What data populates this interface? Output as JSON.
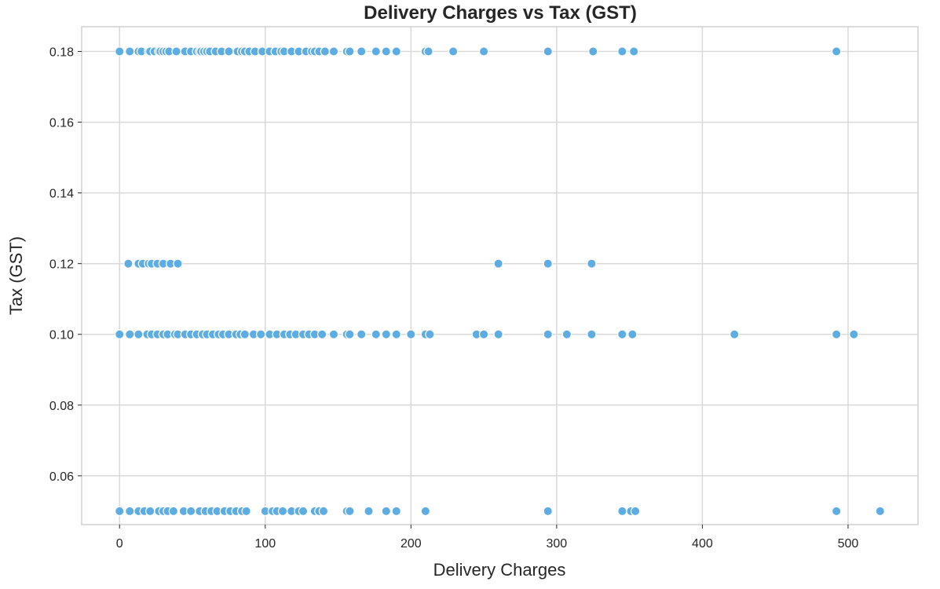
{
  "chart_data": {
    "type": "scatter",
    "title": "Delivery Charges vs Tax (GST)",
    "xlabel": "Delivery Charges",
    "ylabel": "Tax (GST)",
    "xlim": [
      -26,
      548
    ],
    "ylim": [
      0.0462,
      0.187
    ],
    "xticks": [
      0,
      100,
      200,
      300,
      400,
      500
    ],
    "xtick_labels": [
      "0",
      "100",
      "200",
      "300",
      "400",
      "500"
    ],
    "yticks": [
      0.06,
      0.08,
      0.1,
      0.12,
      0.14,
      0.16,
      0.18
    ],
    "ytick_labels": [
      "0.06",
      "0.08",
      "0.10",
      "0.12",
      "0.14",
      "0.16",
      "0.18"
    ],
    "grid": true,
    "point_color": "#5dade2",
    "series": [
      {
        "points": [
          [
            0,
            0.18
          ],
          [
            7,
            0.18
          ],
          [
            13,
            0.18
          ],
          [
            15,
            0.18
          ],
          [
            20,
            0.18
          ],
          [
            21,
            0.18
          ],
          [
            24,
            0.18
          ],
          [
            27,
            0.18
          ],
          [
            28,
            0.18
          ],
          [
            30,
            0.18
          ],
          [
            32,
            0.18
          ],
          [
            34,
            0.18
          ],
          [
            39,
            0.18
          ],
          [
            45,
            0.18
          ],
          [
            49,
            0.18
          ],
          [
            53,
            0.18
          ],
          [
            55,
            0.18
          ],
          [
            56,
            0.18
          ],
          [
            58,
            0.18
          ],
          [
            60,
            0.18
          ],
          [
            62,
            0.18
          ],
          [
            66,
            0.18
          ],
          [
            70,
            0.18
          ],
          [
            75,
            0.18
          ],
          [
            81,
            0.18
          ],
          [
            84,
            0.18
          ],
          [
            86,
            0.18
          ],
          [
            89,
            0.18
          ],
          [
            93,
            0.18
          ],
          [
            98,
            0.18
          ],
          [
            103,
            0.18
          ],
          [
            107,
            0.18
          ],
          [
            111,
            0.18
          ],
          [
            113,
            0.18
          ],
          [
            118,
            0.18
          ],
          [
            123,
            0.18
          ],
          [
            128,
            0.18
          ],
          [
            132,
            0.18
          ],
          [
            134,
            0.18
          ],
          [
            137,
            0.18
          ],
          [
            141,
            0.18
          ],
          [
            147,
            0.18
          ],
          [
            156,
            0.18
          ],
          [
            158,
            0.18
          ],
          [
            166,
            0.18
          ],
          [
            176,
            0.18
          ],
          [
            183,
            0.18
          ],
          [
            190,
            0.18
          ],
          [
            210,
            0.18
          ],
          [
            212,
            0.18
          ],
          [
            229,
            0.18
          ],
          [
            250,
            0.18
          ],
          [
            294,
            0.18
          ],
          [
            325,
            0.18
          ],
          [
            345,
            0.18
          ],
          [
            353,
            0.18
          ],
          [
            492,
            0.18
          ],
          [
            6,
            0.12
          ],
          [
            13,
            0.12
          ],
          [
            16,
            0.12
          ],
          [
            20,
            0.12
          ],
          [
            22,
            0.12
          ],
          [
            26,
            0.12
          ],
          [
            30,
            0.12
          ],
          [
            35,
            0.12
          ],
          [
            40,
            0.12
          ],
          [
            260,
            0.12
          ],
          [
            294,
            0.12
          ],
          [
            324,
            0.12
          ],
          [
            0,
            0.1
          ],
          [
            7,
            0.1
          ],
          [
            13,
            0.1
          ],
          [
            19,
            0.1
          ],
          [
            22,
            0.1
          ],
          [
            26,
            0.1
          ],
          [
            30,
            0.1
          ],
          [
            33,
            0.1
          ],
          [
            38,
            0.1
          ],
          [
            40,
            0.1
          ],
          [
            45,
            0.1
          ],
          [
            49,
            0.1
          ],
          [
            53,
            0.1
          ],
          [
            57,
            0.1
          ],
          [
            60,
            0.1
          ],
          [
            64,
            0.1
          ],
          [
            68,
            0.1
          ],
          [
            71,
            0.1
          ],
          [
            75,
            0.1
          ],
          [
            80,
            0.1
          ],
          [
            83,
            0.1
          ],
          [
            86,
            0.1
          ],
          [
            92,
            0.1
          ],
          [
            97,
            0.1
          ],
          [
            103,
            0.1
          ],
          [
            108,
            0.1
          ],
          [
            113,
            0.1
          ],
          [
            117,
            0.1
          ],
          [
            121,
            0.1
          ],
          [
            126,
            0.1
          ],
          [
            130,
            0.1
          ],
          [
            134,
            0.1
          ],
          [
            139,
            0.1
          ],
          [
            147,
            0.1
          ],
          [
            156,
            0.1
          ],
          [
            158,
            0.1
          ],
          [
            166,
            0.1
          ],
          [
            176,
            0.1
          ],
          [
            183,
            0.1
          ],
          [
            190,
            0.1
          ],
          [
            200,
            0.1
          ],
          [
            210,
            0.1
          ],
          [
            213,
            0.1
          ],
          [
            245,
            0.1
          ],
          [
            250,
            0.1
          ],
          [
            260,
            0.1
          ],
          [
            294,
            0.1
          ],
          [
            307,
            0.1
          ],
          [
            324,
            0.1
          ],
          [
            345,
            0.1
          ],
          [
            352,
            0.1
          ],
          [
            422,
            0.1
          ],
          [
            492,
            0.1
          ],
          [
            504,
            0.1
          ],
          [
            0,
            0.05
          ],
          [
            7,
            0.05
          ],
          [
            13,
            0.05
          ],
          [
            17,
            0.05
          ],
          [
            21,
            0.05
          ],
          [
            27,
            0.05
          ],
          [
            30,
            0.05
          ],
          [
            33,
            0.05
          ],
          [
            37,
            0.05
          ],
          [
            44,
            0.05
          ],
          [
            49,
            0.05
          ],
          [
            55,
            0.05
          ],
          [
            59,
            0.05
          ],
          [
            63,
            0.05
          ],
          [
            67,
            0.05
          ],
          [
            72,
            0.05
          ],
          [
            76,
            0.05
          ],
          [
            80,
            0.05
          ],
          [
            84,
            0.05
          ],
          [
            87,
            0.05
          ],
          [
            100,
            0.05
          ],
          [
            105,
            0.05
          ],
          [
            108,
            0.05
          ],
          [
            112,
            0.05
          ],
          [
            118,
            0.05
          ],
          [
            123,
            0.05
          ],
          [
            126,
            0.05
          ],
          [
            134,
            0.05
          ],
          [
            137,
            0.05
          ],
          [
            140,
            0.05
          ],
          [
            156,
            0.05
          ],
          [
            158,
            0.05
          ],
          [
            171,
            0.05
          ],
          [
            183,
            0.05
          ],
          [
            190,
            0.05
          ],
          [
            210,
            0.05
          ],
          [
            294,
            0.05
          ],
          [
            345,
            0.05
          ],
          [
            351,
            0.05
          ],
          [
            354,
            0.05
          ],
          [
            492,
            0.05
          ],
          [
            522,
            0.05
          ]
        ]
      }
    ]
  }
}
